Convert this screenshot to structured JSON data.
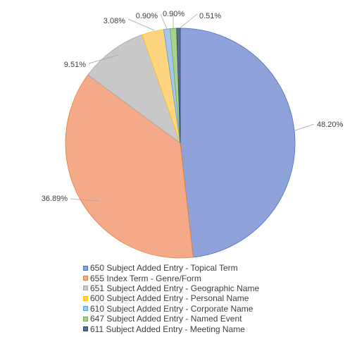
{
  "chart_data": {
    "type": "pie",
    "title": "",
    "slices": [
      {
        "label": "650 Subject Added Entry - Topical Term",
        "value": 48.2,
        "display": "48.20%",
        "color": "#8FA3DA",
        "edge": "#4472C4"
      },
      {
        "label": "655 Index Term - Genre/Form",
        "value": 36.89,
        "display": "36.89%",
        "color": "#F4A988",
        "edge": "#ED7D31"
      },
      {
        "label": "651 Subject Added Entry - Geographic Name",
        "value": 9.51,
        "display": "9.51%",
        "color": "#C8C8C8",
        "edge": "#A5A5A5"
      },
      {
        "label": "600 Subject Added Entry - Personal Name",
        "value": 3.08,
        "display": "3.08%",
        "color": "#FFD580",
        "edge": "#FFC000"
      },
      {
        "label": "610 Subject Added Entry - Corporate Name",
        "value": 0.9,
        "display": "0.90%",
        "color": "#A9C6EA",
        "edge": "#5B9BD5"
      },
      {
        "label": "647 Subject Added Entry - Named Event",
        "value": 0.9,
        "display": "0.90%",
        "color": "#A9D18E",
        "edge": "#70AD47"
      },
      {
        "label": "611 Subject Added Entry - Meeting Name",
        "value": 0.51,
        "display": "0.51%",
        "color": "#5A6E8A",
        "edge": "#264478"
      }
    ],
    "legend_position": "bottom"
  }
}
